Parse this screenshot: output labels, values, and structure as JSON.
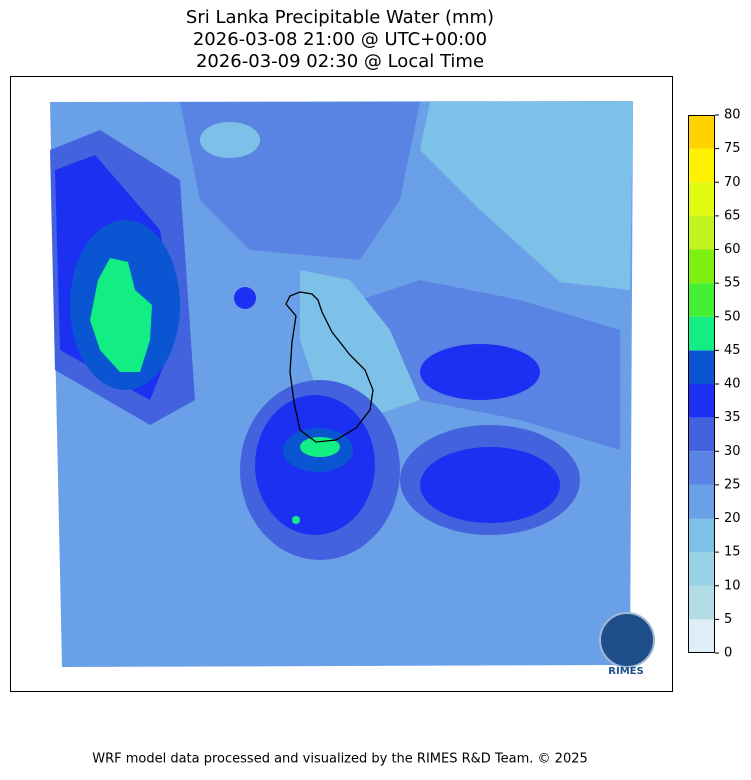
{
  "title": [
    "Sri Lanka Precipitable Water (mm)",
    "2026-03-08 21:00 @ UTC+00:00",
    "2026-03-09 02:30 @ Local Time"
  ],
  "colorbar": {
    "ticks": [
      0,
      5,
      10,
      15,
      20,
      25,
      30,
      35,
      40,
      45,
      50,
      55,
      60,
      65,
      70,
      75,
      80
    ],
    "colors": [
      "#deeef8",
      "#b2dde6",
      "#96d1e4",
      "#7ec1e8",
      "#6aa0e8",
      "#5a84e4",
      "#4262de",
      "#1c30f2",
      "#0a56d2",
      "#12ee84",
      "#44f034",
      "#80f012",
      "#c2f422",
      "#e2fa12",
      "#fff200",
      "#ffd200"
    ]
  },
  "logo": "RIMES",
  "footer": "WRF model data processed and visualized by the RIMES R&D Team. © 2025"
}
